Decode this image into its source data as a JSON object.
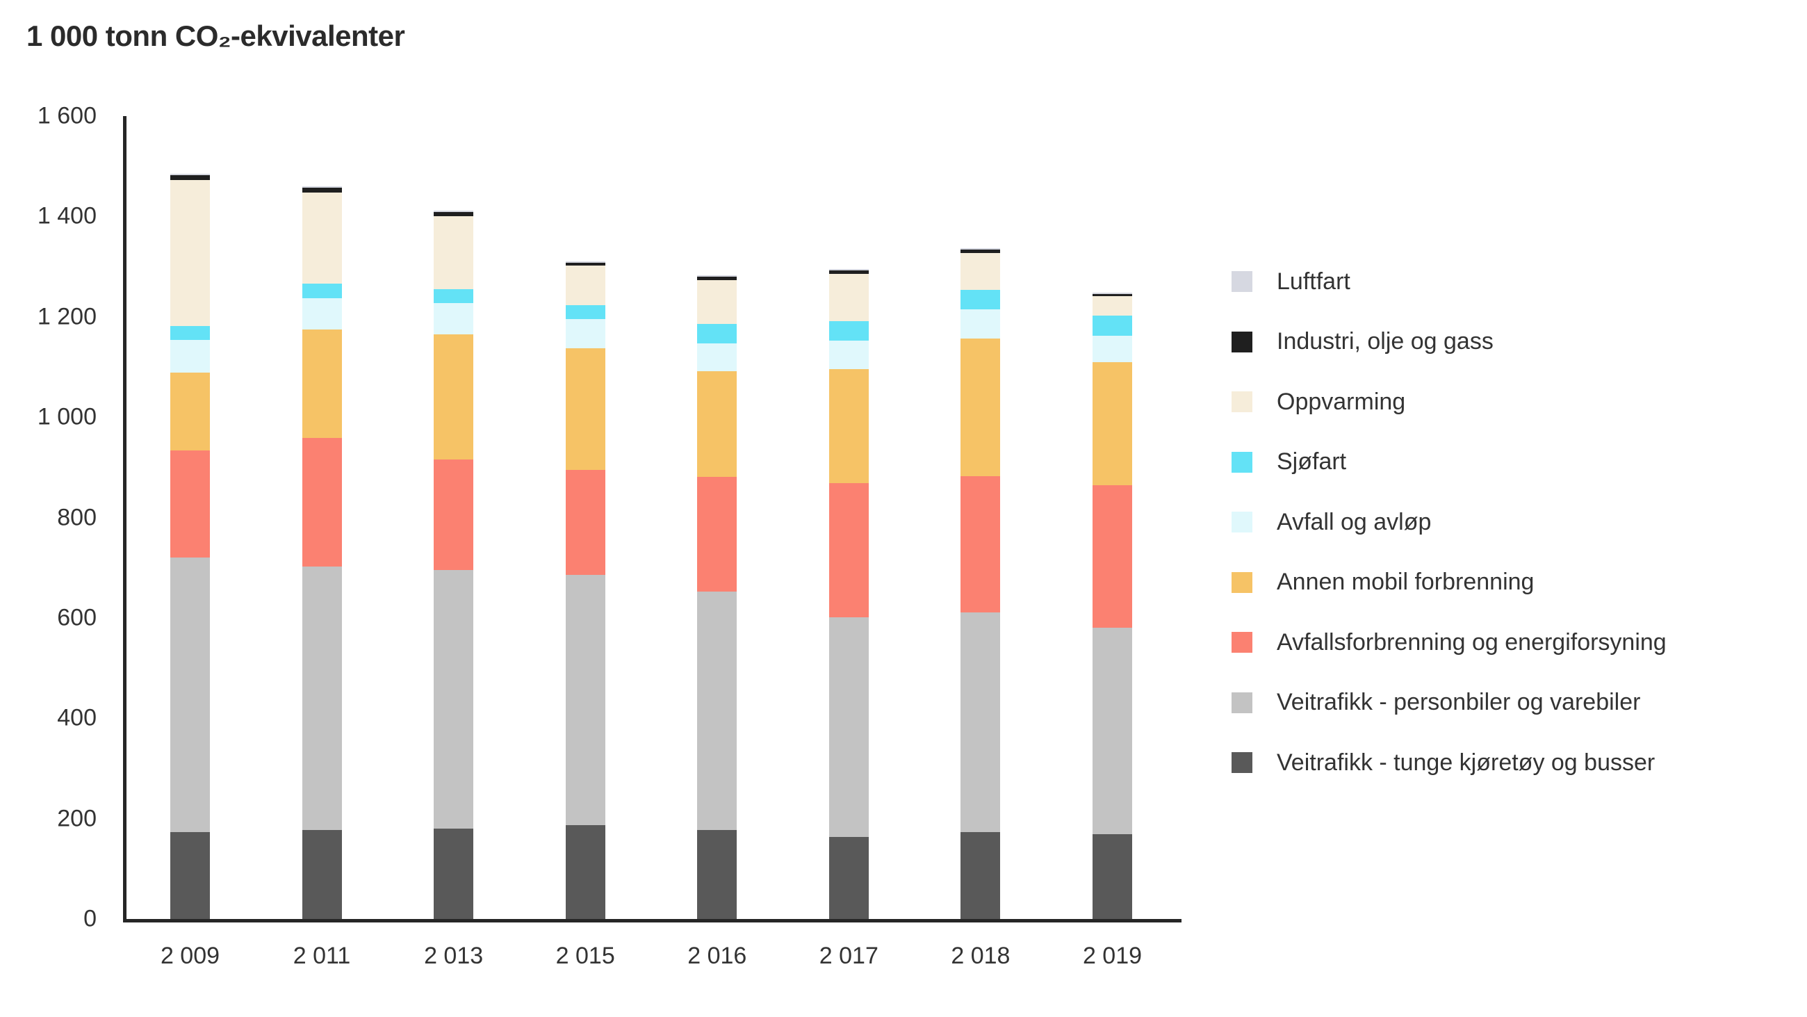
{
  "title": "1 000 tonn CO₂-ekvivalenter",
  "chart_data": {
    "type": "bar",
    "stacked": true,
    "title": "1 000 tonn CO₂-ekvivalenter",
    "xlabel": "",
    "ylabel": "1 000 tonn CO₂-ekvivalenter",
    "ylim": [
      0,
      1600
    ],
    "ytick_interval": 200,
    "ytick_labels": [
      "0",
      "200",
      "400",
      "600",
      "800",
      "1 000",
      "1 200",
      "1 400",
      "1 600"
    ],
    "grid": false,
    "legend_position": "right",
    "categories": [
      "2 009",
      "2 011",
      "2 013",
      "2 015",
      "2 016",
      "2 017",
      "2 018",
      "2 019"
    ],
    "series": [
      {
        "name": "Veitrafikk - tunge kjøretøy og busser",
        "color": "#595959",
        "values": [
          173,
          177,
          180,
          187,
          177,
          164,
          173,
          169
        ]
      },
      {
        "name": "Veitrafikk - personbiler og varebiler",
        "color": "#c3c3c3",
        "values": [
          547,
          525,
          515,
          499,
          475,
          437,
          438,
          412
        ]
      },
      {
        "name": "Avfallsforbrenning og energiforsyning",
        "color": "#fb8171",
        "values": [
          213,
          256,
          220,
          209,
          229,
          267,
          271,
          283
        ]
      },
      {
        "name": "Annen mobil forbrenning",
        "color": "#f6c366",
        "values": [
          156,
          217,
          250,
          242,
          211,
          228,
          275,
          245
        ]
      },
      {
        "name": "Avfall og avløp",
        "color": "#e0f8fc",
        "values": [
          65,
          62,
          62,
          58,
          55,
          57,
          58,
          53
        ]
      },
      {
        "name": "Sjøfart",
        "color": "#63e2f6",
        "values": [
          28,
          29,
          28,
          28,
          39,
          39,
          39,
          40
        ]
      },
      {
        "name": "Oppvarming",
        "color": "#f6edda",
        "values": [
          290,
          181,
          146,
          79,
          87,
          94,
          73,
          39
        ]
      },
      {
        "name": "Industri, olje og gass",
        "color": "#1f1f1f",
        "values": [
          10,
          10,
          8,
          6,
          7,
          6,
          7,
          5
        ]
      },
      {
        "name": "Luftfart",
        "color": "#d6d8e1",
        "values": [
          3,
          3,
          3,
          3,
          3,
          3,
          3,
          2
        ]
      }
    ],
    "legend_order": [
      "Luftfart",
      "Industri, olje og gass",
      "Oppvarming",
      "Sjøfart",
      "Avfall og avløp",
      "Annen mobil forbrenning",
      "Avfallsforbrenning og energiforsyning",
      "Veitrafikk - personbiler og varebiler",
      "Veitrafikk - tunge kjøretøy og busser"
    ]
  }
}
